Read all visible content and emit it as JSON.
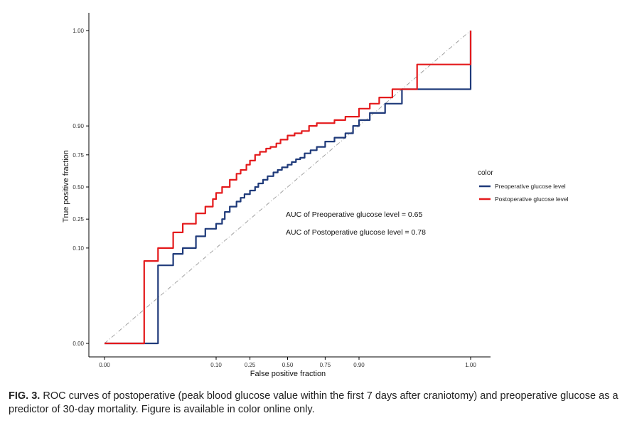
{
  "chart_data": {
    "type": "line",
    "xlabel": "False positive fraction",
    "ylabel": "True positive fraction",
    "x_ticks": [
      "0.00",
      "0.10",
      "0.25",
      "0.50",
      "0.75",
      "0.90",
      "1.00"
    ],
    "y_ticks": [
      "0.00",
      "0.10",
      "0.25",
      "0.50",
      "0.75",
      "0.90",
      "1.00"
    ],
    "xlim": [
      0,
      1
    ],
    "ylim": [
      0,
      1
    ],
    "scale": "probit",
    "grid": false,
    "legend": {
      "title": "color",
      "placement": "right",
      "entries": [
        {
          "label": "Preoperative glucose level",
          "color": "#1f3a7a"
        },
        {
          "label": "Postoperative glucose level",
          "color": "#e41a1c"
        }
      ]
    },
    "annotations": [
      "AUC of Preoperative glucose level  = 0.65",
      "AUC of Postoperative glucose level  = 0.78"
    ],
    "reference_line": {
      "from": [
        0,
        0
      ],
      "to": [
        1,
        1
      ],
      "color": "#999999",
      "style": "dash-dot"
    },
    "series": [
      {
        "name": "Preoperative glucose level",
        "color": "#1f3a7a",
        "x": [
          0.0,
          0.01,
          0.02,
          0.03,
          0.05,
          0.07,
          0.1,
          0.12,
          0.13,
          0.15,
          0.18,
          0.2,
          0.22,
          0.25,
          0.28,
          0.3,
          0.33,
          0.36,
          0.4,
          0.43,
          0.46,
          0.5,
          0.53,
          0.56,
          0.59,
          0.62,
          0.66,
          0.7,
          0.75,
          0.8,
          0.85,
          0.88,
          0.9,
          0.93,
          0.96,
          0.98,
          1.0
        ],
        "y": [
          0.0,
          0.05,
          0.08,
          0.1,
          0.15,
          0.19,
          0.22,
          0.25,
          0.3,
          0.34,
          0.38,
          0.41,
          0.44,
          0.47,
          0.5,
          0.53,
          0.56,
          0.59,
          0.62,
          0.64,
          0.66,
          0.68,
          0.7,
          0.72,
          0.73,
          0.76,
          0.78,
          0.8,
          0.83,
          0.85,
          0.87,
          0.9,
          0.92,
          0.94,
          0.96,
          0.98,
          1.0
        ]
      },
      {
        "name": "Postoperative glucose level",
        "color": "#e41a1c",
        "x": [
          0.0,
          0.005,
          0.01,
          0.02,
          0.03,
          0.05,
          0.07,
          0.09,
          0.1,
          0.12,
          0.15,
          0.18,
          0.2,
          0.23,
          0.25,
          0.28,
          0.31,
          0.35,
          0.38,
          0.42,
          0.45,
          0.5,
          0.55,
          0.6,
          0.65,
          0.7,
          0.75,
          0.8,
          0.85,
          0.9,
          0.93,
          0.95,
          0.97,
          0.99,
          1.0
        ],
        "y": [
          0.0,
          0.06,
          0.1,
          0.17,
          0.22,
          0.29,
          0.34,
          0.4,
          0.45,
          0.5,
          0.56,
          0.61,
          0.64,
          0.68,
          0.71,
          0.75,
          0.77,
          0.79,
          0.8,
          0.82,
          0.84,
          0.86,
          0.87,
          0.88,
          0.9,
          0.91,
          0.91,
          0.92,
          0.93,
          0.95,
          0.96,
          0.97,
          0.98,
          0.995,
          1.0
        ]
      }
    ]
  },
  "caption": {
    "label": "FIG. 3.",
    "text": " ROC curves of postoperative (peak blood glucose value within the first 7 days after craniotomy) and preoperative glucose as a predictor of 30-day mortality. Figure is available in color online only."
  }
}
